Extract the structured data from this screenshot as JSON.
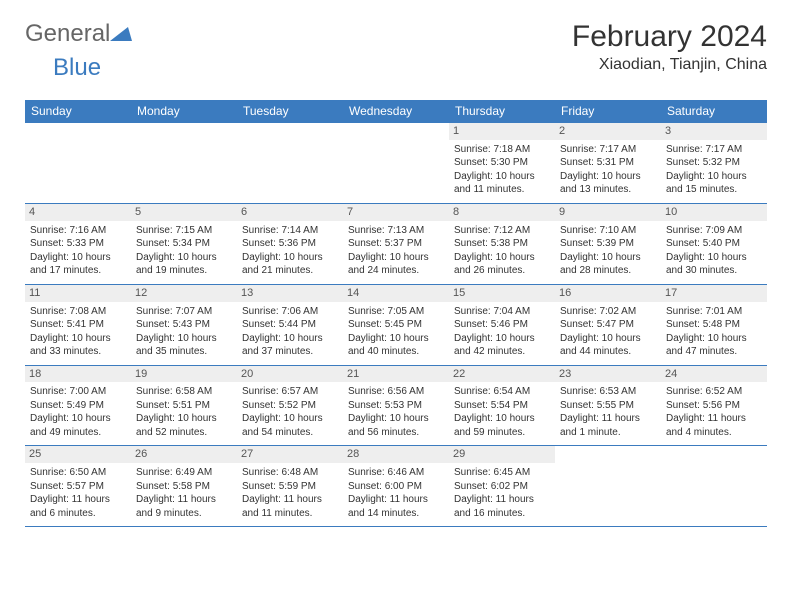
{
  "logo": {
    "text1": "General",
    "text2": "Blue"
  },
  "title": "February 2024",
  "location": "Xiaodian, Tianjin, China",
  "colors": {
    "header_bg": "#3b7bbf",
    "header_text": "#ffffff",
    "daynum_bg": "#eeeeee",
    "border": "#3b7bbf",
    "text": "#333333",
    "background": "#ffffff"
  },
  "weekdays": [
    "Sunday",
    "Monday",
    "Tuesday",
    "Wednesday",
    "Thursday",
    "Friday",
    "Saturday"
  ],
  "weeks": [
    [
      null,
      null,
      null,
      null,
      {
        "num": "1",
        "sunrise": "Sunrise: 7:18 AM",
        "sunset": "Sunset: 5:30 PM",
        "daylight": "Daylight: 10 hours and 11 minutes."
      },
      {
        "num": "2",
        "sunrise": "Sunrise: 7:17 AM",
        "sunset": "Sunset: 5:31 PM",
        "daylight": "Daylight: 10 hours and 13 minutes."
      },
      {
        "num": "3",
        "sunrise": "Sunrise: 7:17 AM",
        "sunset": "Sunset: 5:32 PM",
        "daylight": "Daylight: 10 hours and 15 minutes."
      }
    ],
    [
      {
        "num": "4",
        "sunrise": "Sunrise: 7:16 AM",
        "sunset": "Sunset: 5:33 PM",
        "daylight": "Daylight: 10 hours and 17 minutes."
      },
      {
        "num": "5",
        "sunrise": "Sunrise: 7:15 AM",
        "sunset": "Sunset: 5:34 PM",
        "daylight": "Daylight: 10 hours and 19 minutes."
      },
      {
        "num": "6",
        "sunrise": "Sunrise: 7:14 AM",
        "sunset": "Sunset: 5:36 PM",
        "daylight": "Daylight: 10 hours and 21 minutes."
      },
      {
        "num": "7",
        "sunrise": "Sunrise: 7:13 AM",
        "sunset": "Sunset: 5:37 PM",
        "daylight": "Daylight: 10 hours and 24 minutes."
      },
      {
        "num": "8",
        "sunrise": "Sunrise: 7:12 AM",
        "sunset": "Sunset: 5:38 PM",
        "daylight": "Daylight: 10 hours and 26 minutes."
      },
      {
        "num": "9",
        "sunrise": "Sunrise: 7:10 AM",
        "sunset": "Sunset: 5:39 PM",
        "daylight": "Daylight: 10 hours and 28 minutes."
      },
      {
        "num": "10",
        "sunrise": "Sunrise: 7:09 AM",
        "sunset": "Sunset: 5:40 PM",
        "daylight": "Daylight: 10 hours and 30 minutes."
      }
    ],
    [
      {
        "num": "11",
        "sunrise": "Sunrise: 7:08 AM",
        "sunset": "Sunset: 5:41 PM",
        "daylight": "Daylight: 10 hours and 33 minutes."
      },
      {
        "num": "12",
        "sunrise": "Sunrise: 7:07 AM",
        "sunset": "Sunset: 5:43 PM",
        "daylight": "Daylight: 10 hours and 35 minutes."
      },
      {
        "num": "13",
        "sunrise": "Sunrise: 7:06 AM",
        "sunset": "Sunset: 5:44 PM",
        "daylight": "Daylight: 10 hours and 37 minutes."
      },
      {
        "num": "14",
        "sunrise": "Sunrise: 7:05 AM",
        "sunset": "Sunset: 5:45 PM",
        "daylight": "Daylight: 10 hours and 40 minutes."
      },
      {
        "num": "15",
        "sunrise": "Sunrise: 7:04 AM",
        "sunset": "Sunset: 5:46 PM",
        "daylight": "Daylight: 10 hours and 42 minutes."
      },
      {
        "num": "16",
        "sunrise": "Sunrise: 7:02 AM",
        "sunset": "Sunset: 5:47 PM",
        "daylight": "Daylight: 10 hours and 44 minutes."
      },
      {
        "num": "17",
        "sunrise": "Sunrise: 7:01 AM",
        "sunset": "Sunset: 5:48 PM",
        "daylight": "Daylight: 10 hours and 47 minutes."
      }
    ],
    [
      {
        "num": "18",
        "sunrise": "Sunrise: 7:00 AM",
        "sunset": "Sunset: 5:49 PM",
        "daylight": "Daylight: 10 hours and 49 minutes."
      },
      {
        "num": "19",
        "sunrise": "Sunrise: 6:58 AM",
        "sunset": "Sunset: 5:51 PM",
        "daylight": "Daylight: 10 hours and 52 minutes."
      },
      {
        "num": "20",
        "sunrise": "Sunrise: 6:57 AM",
        "sunset": "Sunset: 5:52 PM",
        "daylight": "Daylight: 10 hours and 54 minutes."
      },
      {
        "num": "21",
        "sunrise": "Sunrise: 6:56 AM",
        "sunset": "Sunset: 5:53 PM",
        "daylight": "Daylight: 10 hours and 56 minutes."
      },
      {
        "num": "22",
        "sunrise": "Sunrise: 6:54 AM",
        "sunset": "Sunset: 5:54 PM",
        "daylight": "Daylight: 10 hours and 59 minutes."
      },
      {
        "num": "23",
        "sunrise": "Sunrise: 6:53 AM",
        "sunset": "Sunset: 5:55 PM",
        "daylight": "Daylight: 11 hours and 1 minute."
      },
      {
        "num": "24",
        "sunrise": "Sunrise: 6:52 AM",
        "sunset": "Sunset: 5:56 PM",
        "daylight": "Daylight: 11 hours and 4 minutes."
      }
    ],
    [
      {
        "num": "25",
        "sunrise": "Sunrise: 6:50 AM",
        "sunset": "Sunset: 5:57 PM",
        "daylight": "Daylight: 11 hours and 6 minutes."
      },
      {
        "num": "26",
        "sunrise": "Sunrise: 6:49 AM",
        "sunset": "Sunset: 5:58 PM",
        "daylight": "Daylight: 11 hours and 9 minutes."
      },
      {
        "num": "27",
        "sunrise": "Sunrise: 6:48 AM",
        "sunset": "Sunset: 5:59 PM",
        "daylight": "Daylight: 11 hours and 11 minutes."
      },
      {
        "num": "28",
        "sunrise": "Sunrise: 6:46 AM",
        "sunset": "Sunset: 6:00 PM",
        "daylight": "Daylight: 11 hours and 14 minutes."
      },
      {
        "num": "29",
        "sunrise": "Sunrise: 6:45 AM",
        "sunset": "Sunset: 6:02 PM",
        "daylight": "Daylight: 11 hours and 16 minutes."
      },
      null,
      null
    ]
  ]
}
